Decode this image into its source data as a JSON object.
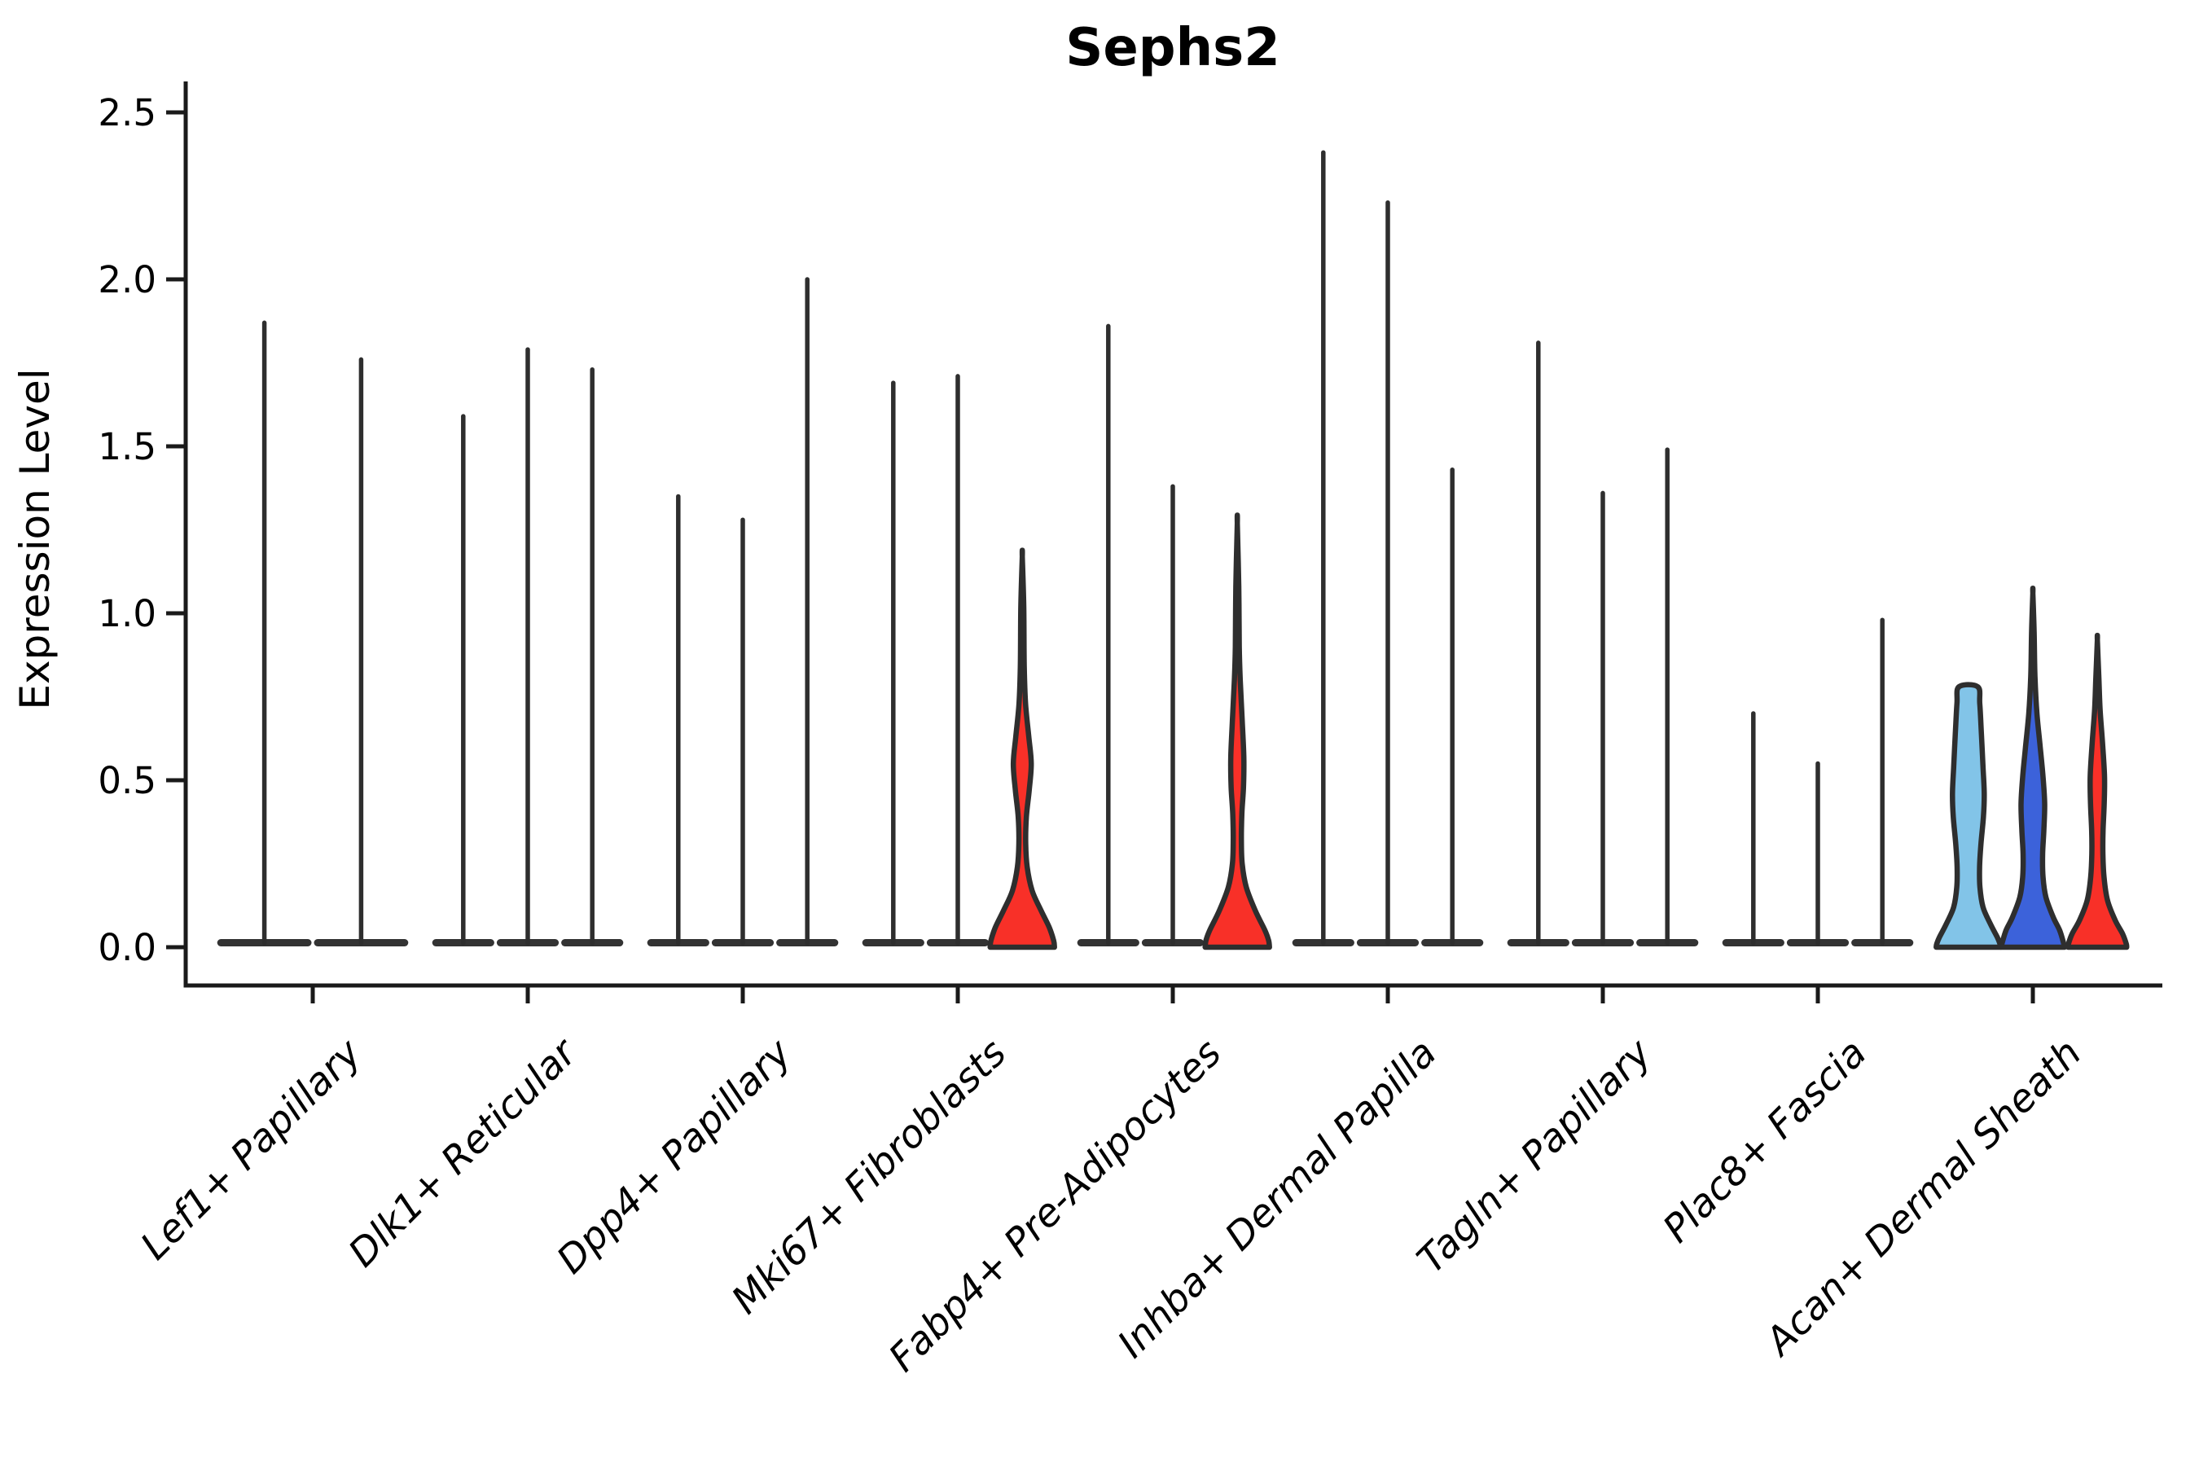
{
  "chart_data": {
    "type": "violin",
    "title": "Sephs2",
    "ylabel": "Expression Level",
    "xlabel": "",
    "grid": false,
    "legend": "none",
    "ylim": [
      -0.11,
      2.59
    ],
    "yticks": [
      0.0,
      0.5,
      1.0,
      1.5,
      2.0,
      2.5
    ],
    "ytick_labels": [
      "0.0",
      "0.5",
      "1.0",
      "1.5",
      "2.0",
      "2.5"
    ],
    "categories": [
      "Lef1+ Papillary",
      "Dlk1+ Reticular",
      "Dpp4+ Papillary",
      "Mki67+ Fibroblasts",
      "Fabp4+ Pre-Adipocytes",
      "Inhba+ Dermal Papilla",
      "Tagln+ Papillary",
      "Plac8+ Fascia",
      "Acan+ Dermal Sheath"
    ],
    "colors": {
      "red": "#f83028",
      "light_blue": "#82c4e8",
      "dark_blue": "#3c62da",
      "outline": "#2e2e2e",
      "axis": "#1a1a1a"
    },
    "groups": [
      {
        "category": "Lef1+ Papillary",
        "violins": [
          {
            "kind": "stem",
            "max": 1.87
          },
          {
            "kind": "stem",
            "max": 1.76
          }
        ]
      },
      {
        "category": "Dlk1+ Reticular",
        "violins": [
          {
            "kind": "stem",
            "max": 1.59
          },
          {
            "kind": "stem",
            "max": 1.79
          },
          {
            "kind": "stem",
            "max": 1.73
          }
        ]
      },
      {
        "category": "Dpp4+ Papillary",
        "violins": [
          {
            "kind": "stem",
            "max": 1.35
          },
          {
            "kind": "stem",
            "max": 1.28
          },
          {
            "kind": "stem",
            "max": 2.0
          }
        ]
      },
      {
        "category": "Mki67+ Fibroblasts",
        "violins": [
          {
            "kind": "stem",
            "max": 1.69
          },
          {
            "kind": "stem",
            "max": 1.71
          },
          {
            "kind": "body",
            "max": 1.17,
            "color": "red",
            "profile": [
              [
                1.17,
                0
              ],
              [
                1.02,
                1.8
              ],
              [
                0.84,
                2.4
              ],
              [
                0.73,
                4
              ],
              [
                0.63,
                8
              ],
              [
                0.55,
                11
              ],
              [
                0.47,
                8.5
              ],
              [
                0.39,
                5
              ],
              [
                0.31,
                4.2
              ],
              [
                0.24,
                6
              ],
              [
                0.17,
                12
              ],
              [
                0.11,
                23
              ],
              [
                0.06,
                33
              ],
              [
                0.02,
                38.5
              ],
              [
                0,
                39.5
              ]
            ]
          }
        ]
      },
      {
        "category": "Fabp4+ Pre-Adipocytes",
        "violins": [
          {
            "kind": "stem",
            "max": 1.86
          },
          {
            "kind": "stem",
            "max": 1.38
          },
          {
            "kind": "body",
            "max": 1.27,
            "color": "red",
            "profile": [
              [
                1.27,
                0
              ],
              [
                1.08,
                1.8
              ],
              [
                0.9,
                2.4
              ],
              [
                0.8,
                3.6
              ],
              [
                0.68,
                6
              ],
              [
                0.57,
                8
              ],
              [
                0.48,
                7.6
              ],
              [
                0.4,
                5.6
              ],
              [
                0.32,
                5
              ],
              [
                0.25,
                6
              ],
              [
                0.18,
                11
              ],
              [
                0.11,
                22
              ],
              [
                0.05,
                34
              ],
              [
                0.02,
                38.5
              ],
              [
                0,
                39.5
              ]
            ]
          }
        ]
      },
      {
        "category": "Inhba+ Dermal Papilla",
        "violins": [
          {
            "kind": "stem",
            "max": 2.38
          },
          {
            "kind": "stem",
            "max": 2.23
          },
          {
            "kind": "stem",
            "max": 1.43
          }
        ]
      },
      {
        "category": "Tagln+ Papillary",
        "violins": [
          {
            "kind": "stem",
            "max": 1.81
          },
          {
            "kind": "stem",
            "max": 1.36
          },
          {
            "kind": "stem",
            "max": 1.49
          }
        ]
      },
      {
        "category": "Plac8+ Fascia",
        "violins": [
          {
            "kind": "stem",
            "max": 0.7
          },
          {
            "kind": "stem",
            "max": 0.55
          },
          {
            "kind": "stem",
            "max": 0.98
          }
        ]
      },
      {
        "category": "Acan+ Dermal Sheath",
        "violins": [
          {
            "kind": "body",
            "max": 0.78,
            "color": "light_blue",
            "flat_top": true,
            "profile": [
              [
                0.78,
                11.5
              ],
              [
                0.73,
                14
              ],
              [
                0.64,
                16
              ],
              [
                0.54,
                18
              ],
              [
                0.46,
                19.5
              ],
              [
                0.39,
                18.5
              ],
              [
                0.31,
                15.5
              ],
              [
                0.24,
                13.8
              ],
              [
                0.18,
                14.2
              ],
              [
                0.12,
                18
              ],
              [
                0.07,
                27
              ],
              [
                0.03,
                35.5
              ],
              [
                0.01,
                38.8
              ],
              [
                0,
                39.5
              ]
            ]
          },
          {
            "kind": "body",
            "max": 1.06,
            "color": "dark_blue",
            "profile": [
              [
                1.06,
                0
              ],
              [
                0.94,
                1.6
              ],
              [
                0.81,
                2.6
              ],
              [
                0.7,
                5
              ],
              [
                0.6,
                9
              ],
              [
                0.51,
                12.5
              ],
              [
                0.43,
                14.5
              ],
              [
                0.35,
                13.5
              ],
              [
                0.28,
                12
              ],
              [
                0.21,
                12.5
              ],
              [
                0.15,
                16
              ],
              [
                0.09,
                25
              ],
              [
                0.05,
                33
              ],
              [
                0.01,
                38
              ],
              [
                0,
                38.8
              ]
            ]
          },
          {
            "kind": "body",
            "max": 0.92,
            "color": "red",
            "profile": [
              [
                0.92,
                0
              ],
              [
                0.81,
                1.8
              ],
              [
                0.71,
                3.4
              ],
              [
                0.61,
                6.4
              ],
              [
                0.51,
                8.8
              ],
              [
                0.43,
                8.4
              ],
              [
                0.35,
                7
              ],
              [
                0.28,
                6.8
              ],
              [
                0.21,
                8.2
              ],
              [
                0.14,
                12.5
              ],
              [
                0.08,
                22
              ],
              [
                0.04,
                31
              ],
              [
                0.01,
                35.5
              ],
              [
                0,
                36
              ]
            ]
          }
        ]
      }
    ]
  }
}
